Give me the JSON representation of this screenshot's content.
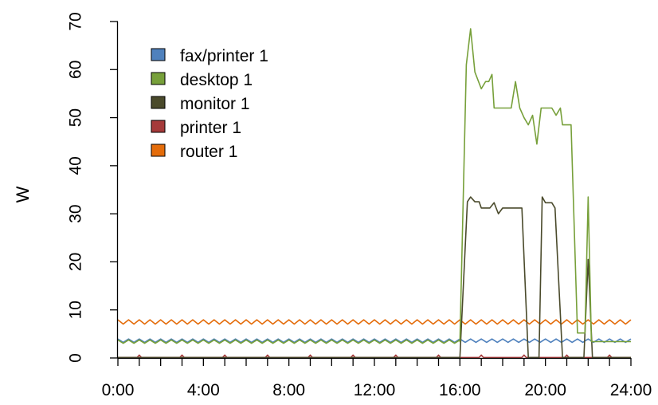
{
  "chart_data": {
    "type": "line",
    "title": "",
    "xlabel": "",
    "ylabel": "W",
    "xlim": [
      0,
      24
    ],
    "ylim": [
      0,
      70
    ],
    "x_ticks": [
      0,
      4,
      8,
      12,
      16,
      20,
      24
    ],
    "x_tick_labels": [
      "0:00",
      "4:00",
      "8:00",
      "12:00",
      "16:00",
      "20:00",
      "24:00"
    ],
    "y_ticks": [
      0,
      10,
      20,
      30,
      40,
      50,
      60,
      70
    ],
    "y_tick_labels": [
      "0",
      "10",
      "20",
      "30",
      "40",
      "50",
      "60",
      "70"
    ],
    "grid": false,
    "legend_position": "top-left",
    "series": [
      {
        "name": "fax/printer 1",
        "color": "#4f81bd",
        "pattern": {
          "type": "wave",
          "base": 3.6,
          "amp": 0.35,
          "period": 0.5
        },
        "points": []
      },
      {
        "name": "desktop 1",
        "color": "#77a03a",
        "pattern": {
          "type": "wave",
          "base": 3.4,
          "amp": 0.35,
          "period": 0.5,
          "until": 16.0
        },
        "points": [
          [
            16.0,
            3.4
          ],
          [
            16.3,
            61
          ],
          [
            16.5,
            68.5
          ],
          [
            16.7,
            59.5
          ],
          [
            17.0,
            56
          ],
          [
            17.2,
            57.5
          ],
          [
            17.35,
            57.5
          ],
          [
            17.5,
            59
          ],
          [
            17.6,
            52
          ],
          [
            18.4,
            52
          ],
          [
            18.6,
            57.5
          ],
          [
            18.8,
            52
          ],
          [
            19.0,
            50
          ],
          [
            19.2,
            48.5
          ],
          [
            19.4,
            50.5
          ],
          [
            19.6,
            44.5
          ],
          [
            19.8,
            52
          ],
          [
            20.3,
            52
          ],
          [
            20.5,
            50.5
          ],
          [
            20.7,
            52
          ],
          [
            20.8,
            48.5
          ],
          [
            21.2,
            48.5
          ],
          [
            21.5,
            5.2
          ],
          [
            21.85,
            5.2
          ],
          [
            22.0,
            33.5
          ],
          [
            22.15,
            3.4
          ],
          [
            24.0,
            3.4
          ]
        ]
      },
      {
        "name": "monitor 1",
        "color": "#4a4a2b",
        "points": [
          [
            0,
            0.1
          ],
          [
            16.0,
            0.1
          ],
          [
            16.35,
            32.5
          ],
          [
            16.5,
            33.5
          ],
          [
            16.7,
            32.5
          ],
          [
            16.9,
            32.5
          ],
          [
            17.0,
            31.2
          ],
          [
            17.4,
            31.2
          ],
          [
            17.6,
            32.3
          ],
          [
            17.8,
            30.0
          ],
          [
            18.0,
            31.2
          ],
          [
            18.9,
            31.2
          ],
          [
            19.2,
            0.1
          ],
          [
            19.7,
            0.1
          ],
          [
            19.85,
            33.5
          ],
          [
            20.0,
            32.3
          ],
          [
            20.3,
            32.3
          ],
          [
            20.45,
            31.2
          ],
          [
            20.8,
            0.1
          ],
          [
            21.8,
            0.1
          ],
          [
            22.0,
            20.5
          ],
          [
            22.2,
            0.1
          ],
          [
            24.0,
            0.1
          ]
        ]
      },
      {
        "name": "printer 1",
        "color": "#a53a3a",
        "pattern": {
          "type": "spikes",
          "base": 0.1,
          "amp": 0.5,
          "interval": 2,
          "width": 0.2
        },
        "points": []
      },
      {
        "name": "router 1",
        "color": "#e46c0a",
        "pattern": {
          "type": "wave",
          "base": 7.5,
          "amp": 0.45,
          "period": 0.5
        },
        "points": []
      }
    ]
  }
}
